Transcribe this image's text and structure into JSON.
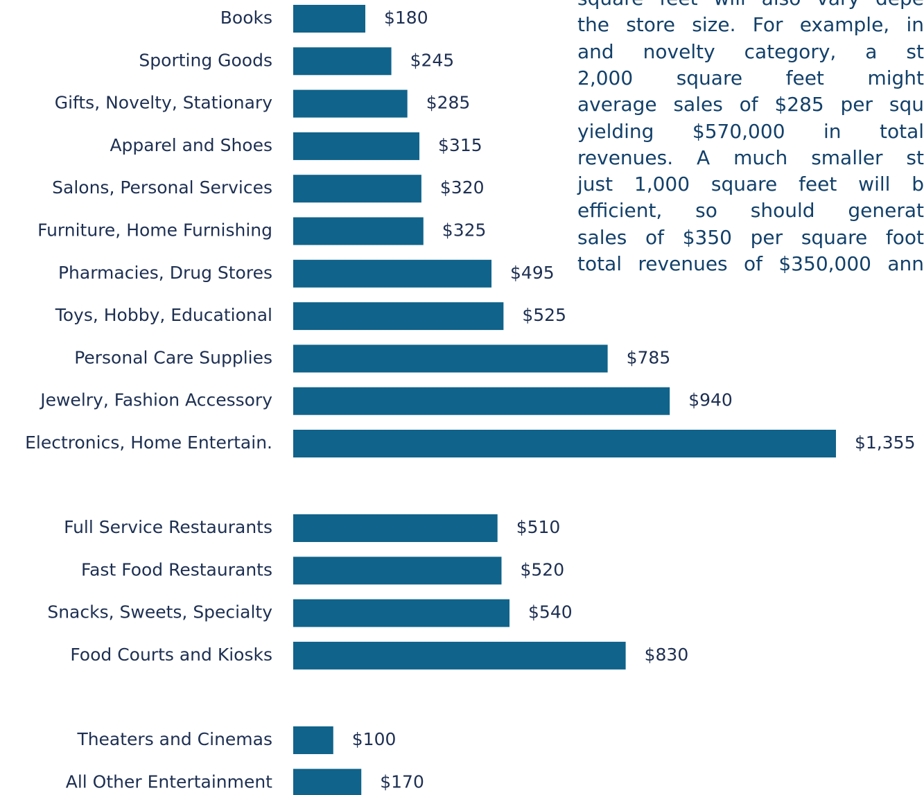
{
  "chart_data": [
    {
      "type": "bar",
      "color": "#10638a",
      "categories": [
        "Books",
        "Sporting Goods",
        "Gifts, Novelty, Stationary",
        "Apparel and Shoes",
        "Salons, Personal Services",
        "Furniture, Home Furnishing",
        "Pharmacies, Drug Stores",
        "Toys, Hobby, Educational",
        "Personal Care Supplies",
        "Jewelry, Fashion Accessory",
        "Electronics, Home Entertain."
      ],
      "values": [
        180,
        245,
        285,
        315,
        320,
        325,
        495,
        525,
        785,
        940,
        1355
      ],
      "value_labels": [
        "$180",
        "$245",
        "$285",
        "$315",
        "$320",
        "$325",
        "$495",
        "$525",
        "$785",
        "$940",
        "$1,355"
      ]
    },
    {
      "type": "bar",
      "color": "#10638a",
      "categories": [
        "Full Service Restaurants",
        "Fast Food Restaurants",
        "Snacks, Sweets, Specialty",
        "Food Courts and Kiosks"
      ],
      "values": [
        510,
        520,
        540,
        830
      ],
      "value_labels": [
        "$510",
        "$520",
        "$540",
        "$830"
      ]
    },
    {
      "type": "bar",
      "color": "#10638a",
      "categories": [
        "Theaters and Cinemas",
        "All Other Entertainment"
      ],
      "values": [
        100,
        170
      ],
      "value_labels": [
        "$100",
        "$170"
      ]
    }
  ],
  "text": {
    "lines": [
      "square feet will also vary depe",
      "the store size. For example, in",
      "and novelty category, a st",
      "2,000 square feet might",
      "average sales of $285 per squ",
      "yielding $570,000 in total",
      "revenues. A much smaller st",
      "just 1,000 square feet will b",
      "efficient, so should generat",
      "sales of $350 per square foot",
      "total revenues of $350,000 ann"
    ]
  }
}
